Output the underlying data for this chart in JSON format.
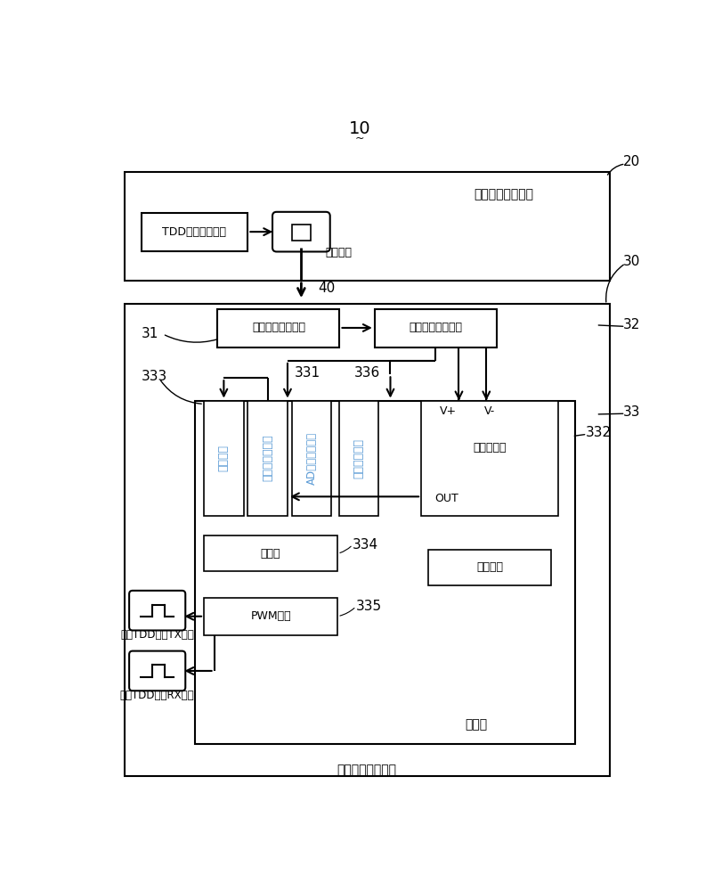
{
  "title": "10",
  "label_20": "20",
  "label_30": "30",
  "label_31": "31",
  "label_32": "32",
  "label_33": "33",
  "label_40": "40",
  "label_331": "331",
  "label_332": "332",
  "label_333": "333",
  "label_334": "334",
  "label_335": "335",
  "label_336": "336",
  "box_near": "有源天线近端模块",
  "box_far": "有源天线远端模块",
  "box_tdd": "TDD同步信号产生",
  "box_detect": "同步信号检波电路",
  "box_shape": "同步信号整形电路",
  "box_timer": "定时器",
  "box_pwm": "PWM模块",
  "box_serial": "串口通信",
  "box_mcu": "单片机",
  "box_interrupt": "中断引脚",
  "box_comparator_out": "内部比较器输出",
  "box_ad": "AD检测输入引脚",
  "box_adj": "调整电压引脚",
  "box_inner_comp": "内部比较器",
  "label_rf": "射频线缆",
  "label_vp": "V+",
  "label_vm": "V-",
  "label_out": "OUT",
  "label_tx": "恢复TDD同步TX信号",
  "label_rx": "恢复TDD同步RX信号",
  "bg_color": "#ffffff",
  "box_color": "#000000",
  "text_color": "#000000",
  "blue_text": "#5b9bd5"
}
